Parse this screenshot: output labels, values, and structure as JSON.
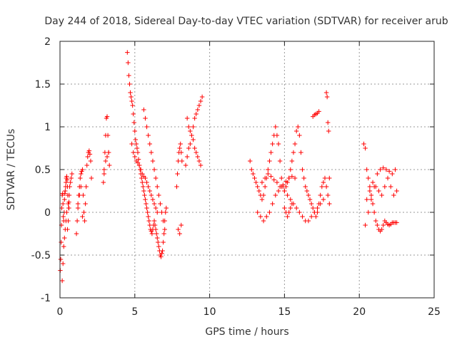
{
  "chart_data": {
    "type": "scatter",
    "title": "Day 244 of 2018, Sidereal Day-to-day VTEC variation (SDTVAR) for receiver arub",
    "xlabel": "GPS time / hours",
    "ylabel": "SDTVAR / TECUs",
    "xlim": [
      0,
      25
    ],
    "ylim": [
      -1,
      2
    ],
    "xticks": [
      0,
      5,
      10,
      15,
      20,
      25
    ],
    "xtick_labels": [
      "0",
      "5",
      "10",
      "15",
      "20",
      "25"
    ],
    "yticks": [
      -1,
      -0.5,
      0,
      0.5,
      1,
      1.5,
      2
    ],
    "ytick_labels": [
      "-1",
      "-0.5",
      "0",
      "0.5",
      "1",
      "1.5",
      "2"
    ],
    "grid": true,
    "marker": "+",
    "series": [
      {
        "name": "SDTVAR",
        "color": "#ff0000",
        "x": [
          0.02,
          0.05,
          0.08,
          0.1,
          0.12,
          0.15,
          0.18,
          0.2,
          0.22,
          0.25,
          0.28,
          0.3,
          0.32,
          0.35,
          0.38,
          0.4,
          0.42,
          0.45,
          0.48,
          0.5,
          0.52,
          0.55,
          0.58,
          0.6,
          0.62,
          0.65,
          0.7,
          0.75,
          0.8,
          0.15,
          0.2,
          0.25,
          0.3,
          0.35,
          0.4,
          0.45,
          0.5,
          0.55,
          0.6,
          1.1,
          1.15,
          1.2,
          1.25,
          1.3,
          1.35,
          1.4,
          1.45,
          1.5,
          1.55,
          1.6,
          1.65,
          1.7,
          1.75,
          1.8,
          1.85,
          1.9,
          1.95,
          2.0,
          2.05,
          2.1,
          1.2,
          1.3,
          1.4,
          1.5,
          2.9,
          2.95,
          3.0,
          3.05,
          3.1,
          3.15,
          3.2,
          3.25,
          3.3,
          2.95,
          3.05,
          3.15,
          3.25,
          4.5,
          4.55,
          4.6,
          4.65,
          4.7,
          4.75,
          4.8,
          4.85,
          4.9,
          4.95,
          5.0,
          5.05,
          5.1,
          5.15,
          5.2,
          5.25,
          5.3,
          5.35,
          5.4,
          5.45,
          5.5,
          5.55,
          5.6,
          5.65,
          5.7,
          5.75,
          5.8,
          5.85,
          5.9,
          5.95,
          6.0,
          6.05,
          6.1,
          6.15,
          6.2,
          6.25,
          6.3,
          6.35,
          6.4,
          6.45,
          6.5,
          6.55,
          6.6,
          6.65,
          6.7,
          6.75,
          6.8,
          6.85,
          6.9,
          6.95,
          7.0,
          7.05,
          7.1,
          4.8,
          4.9,
          5.0,
          5.1,
          5.2,
          5.3,
          5.4,
          5.5,
          5.6,
          5.7,
          5.8,
          5.9,
          6.0,
          6.1,
          6.2,
          6.3,
          6.4,
          6.5,
          5.6,
          5.7,
          5.8,
          5.9,
          6.0,
          6.1,
          6.2,
          6.3,
          6.4,
          6.5,
          6.6,
          6.7,
          6.8,
          6.9,
          7.0,
          7.8,
          7.85,
          7.9,
          7.95,
          8.0,
          8.05,
          8.1,
          8.15,
          7.9,
          8.0,
          8.1,
          8.4,
          8.5,
          8.6,
          8.7,
          8.8,
          8.9,
          9.0,
          9.1,
          9.2,
          9.3,
          9.4,
          9.5,
          8.5,
          8.6,
          8.7,
          8.8,
          8.9,
          9.0,
          9.1,
          9.2,
          9.3,
          9.4,
          12.7,
          12.8,
          12.9,
          13.0,
          13.1,
          13.2,
          13.3,
          13.4,
          13.5,
          13.6,
          13.7,
          13.8,
          13.9,
          14.0,
          14.1,
          14.2,
          14.3,
          14.4,
          14.5,
          14.6,
          14.7,
          14.8,
          14.9,
          15.0,
          15.1,
          15.2,
          15.3,
          15.4,
          15.5,
          15.6,
          15.7,
          15.8,
          15.9,
          16.0,
          16.1,
          16.2,
          16.3,
          16.4,
          16.5,
          16.6,
          16.7,
          16.8,
          16.9,
          17.0,
          17.1,
          17.2,
          17.3,
          17.4,
          17.5,
          17.6,
          17.7,
          17.8,
          17.9,
          18.0,
          13.2,
          13.4,
          13.6,
          13.8,
          14.0,
          14.2,
          14.4,
          14.6,
          14.8,
          15.0,
          15.2,
          15.4,
          15.6,
          15.8,
          16.0,
          16.2,
          16.4,
          16.6,
          16.8,
          17.0,
          17.2,
          17.4,
          17.6,
          13.5,
          13.7,
          13.9,
          14.1,
          14.3,
          14.5,
          14.7,
          14.9,
          15.1,
          15.3,
          15.5,
          15.7,
          15.0,
          15.1,
          15.2,
          15.3,
          15.4,
          15.5,
          16.9,
          17.0,
          17.1,
          17.2,
          17.3,
          17.8,
          17.85,
          17.9,
          17.95,
          18.0,
          20.3,
          20.4,
          20.5,
          20.6,
          20.7,
          20.8,
          20.9,
          21.0,
          21.1,
          21.2,
          21.3,
          21.4,
          21.5,
          21.6,
          21.7,
          21.8,
          21.9,
          22.0,
          22.1,
          22.2,
          22.3,
          22.4,
          22.5,
          20.4,
          20.6,
          20.8,
          21.0,
          21.2,
          21.4,
          21.6,
          21.8,
          22.0,
          22.2,
          22.4,
          20.5,
          20.7,
          20.9,
          21.1,
          21.3,
          21.5,
          21.7,
          21.9,
          22.1,
          22.3,
          22.5
        ],
        "y": [
          -0.68,
          -0.55,
          -0.35,
          -0.15,
          0.05,
          0.2,
          0.22,
          0.1,
          -0.05,
          -0.1,
          0.0,
          0.15,
          0.22,
          0.25,
          0.3,
          0.35,
          0.4,
          0.42,
          0.38,
          0.3,
          0.2,
          0.1,
          0.05,
          0.12,
          0.2,
          0.3,
          0.35,
          0.4,
          0.45,
          -0.8,
          -0.6,
          -0.4,
          -0.3,
          -0.2,
          -0.1,
          0.0,
          -0.2,
          -0.1,
          0.05,
          -0.25,
          -0.1,
          0.05,
          0.2,
          0.3,
          0.4,
          0.45,
          0.48,
          0.5,
          0.2,
          0.0,
          -0.1,
          0.1,
          0.3,
          0.55,
          0.65,
          0.7,
          0.72,
          0.68,
          0.6,
          0.4,
          0.1,
          0.2,
          0.3,
          -0.05,
          0.35,
          0.5,
          0.7,
          0.9,
          1.1,
          1.12,
          0.9,
          0.7,
          0.55,
          0.45,
          0.6,
          0.65,
          0.7,
          1.87,
          1.75,
          1.6,
          1.5,
          1.4,
          1.35,
          1.3,
          1.25,
          1.15,
          1.05,
          0.95,
          0.85,
          0.8,
          0.75,
          0.7,
          0.62,
          0.55,
          0.5,
          0.45,
          0.4,
          0.35,
          0.3,
          0.25,
          0.2,
          0.15,
          0.1,
          0.05,
          0.0,
          -0.05,
          -0.1,
          -0.15,
          -0.2,
          -0.22,
          -0.25,
          -0.2,
          -0.15,
          -0.1,
          -0.15,
          -0.2,
          -0.25,
          -0.3,
          -0.35,
          -0.4,
          -0.45,
          -0.5,
          -0.52,
          -0.48,
          -0.45,
          -0.35,
          -0.25,
          -0.1,
          0.0,
          0.05,
          0.8,
          0.7,
          0.65,
          0.6,
          0.58,
          0.55,
          0.5,
          0.45,
          0.42,
          0.4,
          0.35,
          0.3,
          0.25,
          0.2,
          0.15,
          0.1,
          0.05,
          0.0,
          1.2,
          1.1,
          1.0,
          0.9,
          0.8,
          0.7,
          0.6,
          0.5,
          0.4,
          0.3,
          0.2,
          0.1,
          0.0,
          -0.1,
          -0.2,
          0.3,
          0.45,
          0.6,
          0.7,
          0.75,
          0.8,
          0.7,
          0.6,
          -0.2,
          -0.25,
          -0.15,
          0.55,
          0.65,
          0.75,
          0.8,
          0.9,
          1.0,
          1.1,
          1.15,
          1.2,
          1.25,
          1.3,
          1.35,
          1.1,
          1.0,
          0.95,
          0.9,
          0.85,
          0.75,
          0.7,
          0.65,
          0.6,
          0.55,
          0.6,
          0.5,
          0.45,
          0.4,
          0.35,
          0.3,
          0.25,
          0.2,
          0.15,
          0.2,
          0.3,
          0.4,
          0.5,
          0.6,
          0.7,
          0.8,
          0.9,
          1.0,
          0.9,
          0.8,
          0.6,
          0.4,
          0.3,
          0.25,
          0.3,
          0.35,
          0.4,
          0.5,
          0.6,
          0.7,
          0.8,
          0.95,
          1.0,
          0.9,
          0.7,
          0.5,
          0.4,
          0.3,
          0.25,
          0.2,
          0.15,
          0.1,
          0.05,
          0.0,
          -0.05,
          0.0,
          0.1,
          0.2,
          0.3,
          0.35,
          0.4,
          0.3,
          0.2,
          0.1,
          0.0,
          -0.05,
          -0.1,
          -0.05,
          0.0,
          0.1,
          0.2,
          0.25,
          0.3,
          0.25,
          0.2,
          0.15,
          0.1,
          0.05,
          0.0,
          -0.05,
          -0.1,
          -0.1,
          -0.05,
          0.0,
          0.05,
          0.1,
          0.15,
          0.35,
          0.4,
          0.45,
          0.42,
          0.38,
          0.35,
          0.3,
          0.32,
          0.36,
          0.4,
          0.42,
          0.4,
          0.05,
          0.0,
          -0.05,
          0.0,
          0.05,
          0.1,
          1.12,
          1.14,
          1.15,
          1.16,
          1.18,
          1.4,
          1.35,
          1.05,
          0.95,
          0.4,
          0.8,
          0.75,
          0.5,
          0.4,
          0.3,
          0.2,
          0.1,
          0.0,
          -0.1,
          -0.15,
          -0.2,
          -0.22,
          -0.2,
          -0.15,
          -0.1,
          -0.12,
          -0.14,
          -0.15,
          -0.14,
          -0.12,
          -0.12,
          -0.12,
          -0.12,
          -0.15,
          0.0,
          0.15,
          0.3,
          0.45,
          0.5,
          0.52,
          0.5,
          0.48,
          0.45,
          0.5,
          0.15,
          0.25,
          0.35,
          0.3,
          0.25,
          0.2,
          0.3,
          0.4,
          0.3,
          0.2,
          0.25
        ]
      }
    ]
  }
}
